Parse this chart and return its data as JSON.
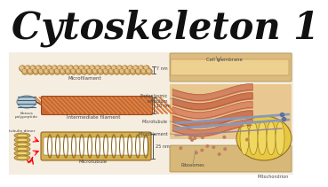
{
  "title": "Cytoskeleton 1",
  "title_color": "#111111",
  "title_fontsize": 30,
  "title_weight": "black",
  "title_italic": true,
  "bg_color": "#f0ece4",
  "title_bg": "#ffffff",
  "bead_color": "#D4A868",
  "bead_edge": "#A07830",
  "if_body_color": "#C86832",
  "if_stripe_color": "#E08848",
  "if_shadow": "#A04818",
  "mt_ring_color": "#D4B050",
  "mt_ring_edge": "#906820",
  "mt_inner": "#ffffff",
  "label_color": "#444444",
  "bracket_color": "#555555",
  "cell_top_color": "#DDBB88",
  "cell_mid_color": "#E8C898",
  "cell_bot_color": "#DDBB88",
  "er_color": "#D07858",
  "er_edge": "#A04828",
  "mt_line_color": "#8899BB",
  "mito_body": "#E8C840",
  "mito_edge": "#907020",
  "mito_crista": "#F0D860",
  "text_small": 4.0,
  "text_tiny": 3.5
}
